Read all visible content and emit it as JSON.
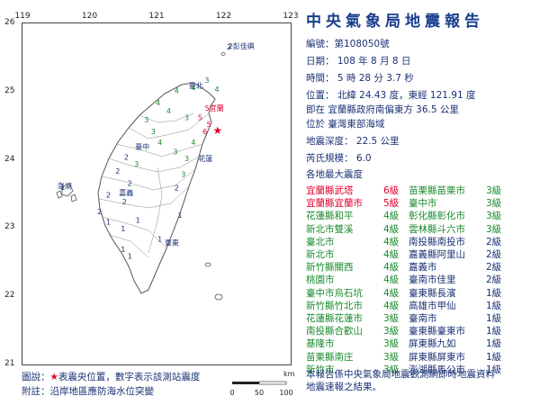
{
  "title": "中央氣象局地震報告",
  "report": {
    "number_label": "編號：",
    "number": "第108050號",
    "date": "日期： 108 年 8 月 8 日",
    "time": "時間： 5 時 28 分 3.7 秒",
    "position": "位置： 北緯 24.43 度，東經 121.91 度",
    "relative_location": "即在 宜蘭縣政府南偏東方 36.5 公里",
    "region": "位於 臺灣東部海域",
    "depth": "地震深度： 22.5 公里",
    "magnitude": "芮氏規模： 6.0",
    "intensity_header": "各地最大震度"
  },
  "intensity_colors": {
    "6級": "#e0002b",
    "5級": "#e0002b",
    "4級": "#1a8a2e",
    "3級": "#1a8a2e",
    "2級": "#1b3275",
    "1級": "#1b3275"
  },
  "intensity_left": [
    {
      "name": "宜蘭縣武塔",
      "level": "6級"
    },
    {
      "name": "宜蘭縣宜蘭市",
      "level": "5級"
    },
    {
      "name": "花蓮縣和平",
      "level": "4級"
    },
    {
      "name": "新北市雙溪",
      "level": "4級"
    },
    {
      "name": "臺北市",
      "level": "4級"
    },
    {
      "name": "新北市",
      "level": "4級"
    },
    {
      "name": "新竹縣關西",
      "level": "4級"
    },
    {
      "name": "桃園市",
      "level": "4級"
    },
    {
      "name": "臺中市烏石坑",
      "level": "4級"
    },
    {
      "name": "新竹縣竹北市",
      "level": "4級"
    },
    {
      "name": "花蓮縣花蓮市",
      "level": "3級"
    },
    {
      "name": "南投縣合歡山",
      "level": "3級"
    },
    {
      "name": "基隆市",
      "level": "3級"
    },
    {
      "name": "苗栗縣南庄",
      "level": "3級"
    },
    {
      "name": "新竹市",
      "level": "3級"
    }
  ],
  "intensity_right": [
    {
      "name": "苗栗縣苗栗市",
      "level": "3級"
    },
    {
      "name": "臺中市",
      "level": "3級"
    },
    {
      "name": "彰化縣彰化市",
      "level": "3級"
    },
    {
      "name": "雲林縣斗六市",
      "level": "3級"
    },
    {
      "name": "南投縣南投市",
      "level": "2級"
    },
    {
      "name": "嘉義縣阿里山",
      "level": "2級"
    },
    {
      "name": "嘉義市",
      "level": "2級"
    },
    {
      "name": "臺南市佳里",
      "level": "2級"
    },
    {
      "name": "臺東縣長濱",
      "level": "1級"
    },
    {
      "name": "高雄市甲仙",
      "level": "1級"
    },
    {
      "name": "臺南市",
      "level": "1級"
    },
    {
      "name": "臺東縣臺東市",
      "level": "1級"
    },
    {
      "name": "屏東縣九如",
      "level": "1級"
    },
    {
      "name": "屏東縣屏東市",
      "level": "1級"
    },
    {
      "name": "澎湖縣馬公市",
      "level": "1級"
    }
  ],
  "note_line1": "本報告係中央氣象局地震觀測網即時地震資料",
  "note_line2": "地震速報之結果。",
  "legend": {
    "line1_prefix": "圖說：",
    "star_glyph": "★",
    "line1_suffix": "表震央位置，數字表示該測站震度",
    "line2": "附註：沿岸地區應防海水位突變"
  },
  "map": {
    "lon_ticks": [
      "119",
      "120",
      "121",
      "122",
      "123"
    ],
    "lat_ticks": [
      "26",
      "25",
      "24",
      "23",
      "22",
      "21"
    ],
    "epicenter": {
      "lat": 24.43,
      "lon": 121.91
    },
    "labels": [
      {
        "text": "2彭佳嶼",
        "lat": 25.63,
        "lon": 122.07,
        "color": "#1b3275"
      },
      {
        "text": "5宜蘭",
        "lat": 24.72,
        "lon": 121.72,
        "color": "#e0002b"
      },
      {
        "text": "花蓮",
        "lat": 23.98,
        "lon": 121.62,
        "color": "#1b3275"
      },
      {
        "text": "臺東",
        "lat": 22.75,
        "lon": 121.12,
        "color": "#1b3275"
      },
      {
        "text": "澎湖",
        "lat": 23.58,
        "lon": 119.52,
        "color": "#1b3275"
      },
      {
        "text": "臺北",
        "lat": 25.05,
        "lon": 121.48,
        "color": "#1b3275"
      },
      {
        "text": "臺中",
        "lat": 24.15,
        "lon": 120.68,
        "color": "#1b3275"
      },
      {
        "text": "嘉義",
        "lat": 23.48,
        "lon": 120.44,
        "color": "#1b3275"
      }
    ],
    "stations": [
      {
        "v": "3",
        "lat": 25.13,
        "lon": 121.75,
        "color": "#1a8a2e"
      },
      {
        "v": "4",
        "lat": 25.02,
        "lon": 121.55,
        "color": "#1a8a2e"
      },
      {
        "v": "4",
        "lat": 25.0,
        "lon": 121.9,
        "color": "#1a8a2e"
      },
      {
        "v": "4",
        "lat": 24.98,
        "lon": 121.3,
        "color": "#1a8a2e"
      },
      {
        "v": "4",
        "lat": 24.8,
        "lon": 121.02,
        "color": "#1a8a2e"
      },
      {
        "v": "4",
        "lat": 24.68,
        "lon": 121.18,
        "color": "#1a8a2e"
      },
      {
        "v": "3",
        "lat": 24.55,
        "lon": 120.85,
        "color": "#1a8a2e"
      },
      {
        "v": "3",
        "lat": 24.38,
        "lon": 120.95,
        "color": "#1a8a2e"
      },
      {
        "v": "4",
        "lat": 24.22,
        "lon": 121.05,
        "color": "#1a8a2e"
      },
      {
        "v": "3",
        "lat": 24.08,
        "lon": 121.28,
        "color": "#1a8a2e"
      },
      {
        "v": "3",
        "lat": 24.58,
        "lon": 121.45,
        "color": "#1a8a2e"
      },
      {
        "v": "5",
        "lat": 24.58,
        "lon": 121.65,
        "color": "#e0002b"
      },
      {
        "v": "5",
        "lat": 24.48,
        "lon": 121.78,
        "color": "#e0002b"
      },
      {
        "v": "6",
        "lat": 24.38,
        "lon": 121.72,
        "color": "#e0002b"
      },
      {
        "v": "4",
        "lat": 24.22,
        "lon": 121.55,
        "color": "#1a8a2e"
      },
      {
        "v": "3",
        "lat": 23.98,
        "lon": 121.45,
        "color": "#1a8a2e"
      },
      {
        "v": "3",
        "lat": 23.75,
        "lon": 121.4,
        "color": "#1a8a2e"
      },
      {
        "v": "2",
        "lat": 23.55,
        "lon": 121.3,
        "color": "#1b3275"
      },
      {
        "v": "2",
        "lat": 24.0,
        "lon": 120.55,
        "color": "#1b3275"
      },
      {
        "v": "2",
        "lat": 23.8,
        "lon": 120.42,
        "color": "#1b3275"
      },
      {
        "v": "3",
        "lat": 23.9,
        "lon": 120.7,
        "color": "#1a8a2e"
      },
      {
        "v": "2",
        "lat": 23.62,
        "lon": 120.6,
        "color": "#1b3275"
      },
      {
        "v": "2",
        "lat": 23.45,
        "lon": 120.28,
        "color": "#1b3275"
      },
      {
        "v": "2",
        "lat": 23.35,
        "lon": 120.52,
        "color": "#1b3275"
      },
      {
        "v": "2",
        "lat": 23.2,
        "lon": 120.15,
        "color": "#1b3275"
      },
      {
        "v": "1",
        "lat": 23.05,
        "lon": 120.28,
        "color": "#1b3275"
      },
      {
        "v": "1",
        "lat": 22.95,
        "lon": 120.5,
        "color": "#1b3275"
      },
      {
        "v": "1",
        "lat": 23.08,
        "lon": 120.72,
        "color": "#1b3275"
      },
      {
        "v": "1",
        "lat": 23.15,
        "lon": 121.35,
        "color": "#1b3275"
      },
      {
        "v": "1",
        "lat": 22.8,
        "lon": 121.05,
        "color": "#1b3275"
      },
      {
        "v": "1",
        "lat": 22.65,
        "lon": 120.5,
        "color": "#1b3275"
      },
      {
        "v": "1",
        "lat": 22.55,
        "lon": 120.6,
        "color": "#1b3275"
      },
      {
        "v": "1",
        "lat": 23.56,
        "lon": 119.6,
        "color": "#1b3275"
      },
      {
        "v": "2",
        "lat": 25.62,
        "lon": 122.08,
        "color": "#1b3275"
      }
    ]
  },
  "scale": {
    "unit": "km",
    "ticks": [
      "0",
      "50",
      "100"
    ]
  }
}
